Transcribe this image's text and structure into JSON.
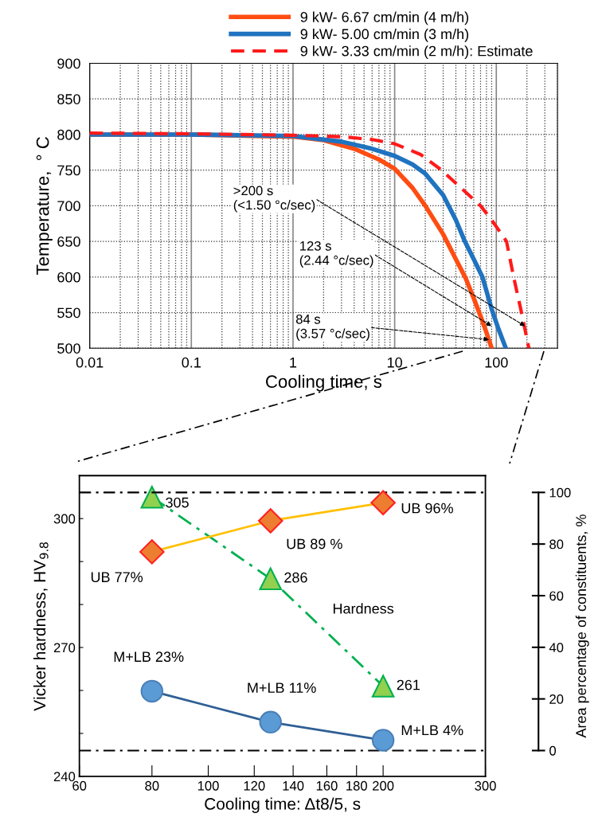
{
  "chart_data": [
    {
      "type": "line",
      "xlabel": "Cooling time, s",
      "ylabel": "Temperature,  ° C",
      "log": "x",
      "grid": true,
      "legend": "top",
      "xlim": [
        0.01,
        400
      ],
      "xticks": [
        0.01,
        0.1,
        1,
        10,
        100
      ],
      "ylim": [
        500,
        900
      ],
      "yticks": [
        500,
        550,
        600,
        650,
        700,
        750,
        800,
        850,
        900
      ],
      "series": [
        {
          "name": "9 kW- 6.67 cm/min (4 m/h)",
          "color": "#ff4d12",
          "line_style": "solid",
          "x": [
            0.01,
            0.1,
            1,
            2,
            4,
            7,
            10,
            15,
            20,
            30,
            40,
            50,
            60,
            70,
            80,
            90
          ],
          "values": [
            800,
            800,
            797,
            792,
            780,
            765,
            752,
            725,
            700,
            660,
            625,
            598,
            570,
            545,
            522,
            500
          ]
        },
        {
          "name": "9 kW- 5.00 cm/min (3 m/h)",
          "color": "#1f73c0",
          "line_style": "solid",
          "x": [
            0.01,
            0.1,
            1,
            3,
            6,
            10,
            15,
            20,
            30,
            40,
            49,
            60,
            73,
            90,
            105,
            124
          ],
          "values": [
            800,
            800,
            798,
            790,
            780,
            770,
            758,
            745,
            715,
            680,
            650,
            625,
            600,
            555,
            527,
            500
          ]
        },
        {
          "name": "9 kW- 3.33 cm/min (2 m/h): Estimate",
          "color": "#ff1a1a",
          "line_style": "dashed",
          "x": [
            0.01,
            0.1,
            1,
            3,
            6,
            10,
            18,
            29,
            45,
            70,
            90,
            126,
            148,
            177,
            209
          ],
          "values": [
            802,
            801,
            799,
            797,
            793,
            787,
            772,
            750,
            725,
            700,
            680,
            650,
            600,
            550,
            500
          ]
        }
      ],
      "annotations": [
        {
          "text": ">200 s\n(<1.50 °c/sec)",
          "x": 192,
          "y": 531
        },
        {
          "text": "123 s\n(2.44 °c/sec)",
          "x": 90,
          "y": 531
        },
        {
          "text": "84 s\n(3.57 °c/sec)",
          "x": 85,
          "y": 512
        }
      ]
    },
    {
      "type": "line",
      "xlabel": "Cooling time: Δt8/5, s",
      "ylabel": "Vicker hardness, HV$_{9.8}$",
      "y2label": "Area percentage of constituents, %",
      "log": "x",
      "xlim": [
        60,
        300
      ],
      "xticks": [
        60,
        80,
        100,
        120,
        140,
        160,
        180,
        200,
        300
      ],
      "ylim": [
        240,
        310
      ],
      "yticks": [
        240,
        {
          "value": 250,
          "label": null
        },
        {
          "value": 260,
          "label": null
        },
        270,
        {
          "value": 280,
          "label": null
        },
        {
          "value": 290,
          "label": null
        },
        300
      ],
      "y2lim": [
        -10,
        106.5
      ],
      "y2ticks": [
        0,
        20,
        40,
        60,
        80,
        100
      ],
      "x": [
        80,
        128,
        200
      ],
      "series": [
        {
          "name": "Hardness",
          "color": "#92d050",
          "marker": "triangle",
          "line_style": "dashdot",
          "values": [
            305,
            286,
            261
          ],
          "value_labels": [
            "305",
            "286",
            "261"
          ]
        },
        {
          "color": "#ed7d31",
          "marker": "diamond",
          "line_style": "solid",
          "axis": "y2",
          "values": [
            77,
            89,
            96
          ],
          "value_labels": [
            "UB 77%",
            "UB 89 %",
            "UB 96%"
          ]
        },
        {
          "color": "#5b9bd5",
          "marker": "circle",
          "line_style": "solid",
          "axis": "y2",
          "values": [
            23,
            11,
            4
          ],
          "value_labels": [
            "M+LB 23%",
            "M+LB 11%",
            "M+LB 4%"
          ]
        }
      ],
      "ref_lines": [
        {
          "axis": "y2",
          "value": 100,
          "color": "#000000",
          "line_style": "dashdot"
        },
        {
          "axis": "y2",
          "value": 0,
          "color": "#000000",
          "line_style": "dashdot"
        }
      ]
    }
  ]
}
